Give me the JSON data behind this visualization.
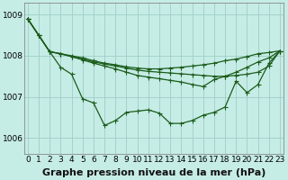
{
  "background_color": "#c6ece6",
  "plot_bg_color": "#c6ece6",
  "line_color": "#1a5c1a",
  "grid_color": "#9ecdc7",
  "xlabel": "Graphe pression niveau de la mer (hPa)",
  "xlabel_fontsize": 8,
  "tick_fontsize": 6.5,
  "ylim": [
    1005.6,
    1009.3
  ],
  "xlim": [
    -0.3,
    23.3
  ],
  "yticks": [
    1006,
    1007,
    1008,
    1009
  ],
  "xticks": [
    0,
    1,
    2,
    3,
    4,
    5,
    6,
    7,
    8,
    9,
    10,
    11,
    12,
    13,
    14,
    15,
    16,
    17,
    18,
    19,
    20,
    21,
    22,
    23
  ],
  "series_main": [
    1008.9,
    1008.5,
    1008.1,
    1007.72,
    1007.55,
    1006.95,
    1006.85,
    1006.3,
    1006.42,
    1006.62,
    1006.65,
    1006.68,
    1006.6,
    1006.35,
    1006.35,
    1006.42,
    1006.55,
    1006.62,
    1006.75,
    1007.38,
    1007.1,
    1007.3,
    1007.82,
    1008.12
  ],
  "series_A": [
    1008.9,
    1008.5,
    1008.1,
    1008.05,
    1008.0,
    1007.95,
    1007.88,
    1007.82,
    1007.78,
    1007.73,
    1007.7,
    1007.68,
    1007.68,
    1007.7,
    1007.72,
    1007.75,
    1007.78,
    1007.82,
    1007.88,
    1007.92,
    1007.98,
    1008.05,
    1008.08,
    1008.12
  ],
  "series_B": [
    1008.9,
    1008.5,
    1008.1,
    1008.05,
    1007.98,
    1007.92,
    1007.85,
    1007.8,
    1007.75,
    1007.7,
    1007.65,
    1007.62,
    1007.6,
    1007.58,
    1007.56,
    1007.54,
    1007.52,
    1007.5,
    1007.5,
    1007.52,
    1007.55,
    1007.6,
    1007.75,
    1008.12
  ],
  "series_C": [
    1008.9,
    1008.5,
    1008.1,
    1008.05,
    1007.98,
    1007.9,
    1007.82,
    1007.75,
    1007.68,
    1007.6,
    1007.52,
    1007.48,
    1007.44,
    1007.4,
    1007.36,
    1007.3,
    1007.25,
    1007.42,
    1007.5,
    1007.6,
    1007.72,
    1007.85,
    1007.95,
    1008.12
  ]
}
